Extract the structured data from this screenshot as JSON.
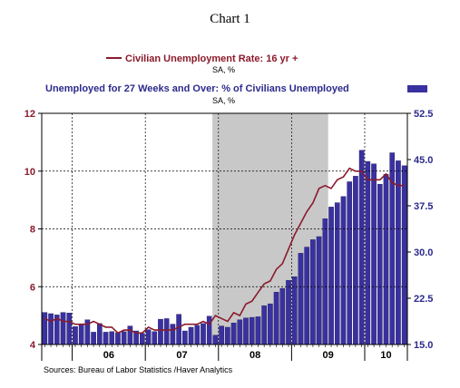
{
  "chart_data": {
    "type": "bar+line",
    "title": "Chart 1",
    "source": "Sources:  Bureau of Labor Statistics /Haver Analytics",
    "colors": {
      "line": "#8b1a2b",
      "bars": "#3a31a0",
      "recession": "#c8c8c8",
      "left_axis": "#8b1a2b",
      "right_axis": "#2b2a8c"
    },
    "x_tick_labels": [
      "06",
      "07",
      "08",
      "09",
      "10"
    ],
    "left_axis": {
      "ticks": [
        "4",
        "6",
        "8",
        "10",
        "12"
      ],
      "ylim": [
        4,
        12
      ]
    },
    "right_axis": {
      "ticks": [
        "15.0",
        "22.5",
        "30.0",
        "37.5",
        "45.0",
        "52.5"
      ],
      "ylim": [
        15,
        52.5
      ]
    },
    "recession": {
      "start": "2007-12",
      "end": "2009-06"
    },
    "months": [
      "2005-08",
      "2005-09",
      "2005-10",
      "2005-11",
      "2005-12",
      "2006-01",
      "2006-02",
      "2006-03",
      "2006-04",
      "2006-05",
      "2006-06",
      "2006-07",
      "2006-08",
      "2006-09",
      "2006-10",
      "2006-11",
      "2006-12",
      "2007-01",
      "2007-02",
      "2007-03",
      "2007-04",
      "2007-05",
      "2007-06",
      "2007-07",
      "2007-08",
      "2007-09",
      "2007-10",
      "2007-11",
      "2007-12",
      "2008-01",
      "2008-02",
      "2008-03",
      "2008-04",
      "2008-05",
      "2008-06",
      "2008-07",
      "2008-08",
      "2008-09",
      "2008-10",
      "2008-11",
      "2008-12",
      "2009-01",
      "2009-02",
      "2009-03",
      "2009-04",
      "2009-05",
      "2009-06",
      "2009-07",
      "2009-08",
      "2009-09",
      "2009-10",
      "2009-11",
      "2009-12",
      "2010-01",
      "2010-02",
      "2010-03",
      "2010-04",
      "2010-05",
      "2010-06",
      "2010-07"
    ],
    "series": [
      {
        "name": "Civilian Unemployment Rate: 16 yr +",
        "units": "SA, %",
        "axis": "left",
        "type": "line",
        "values": [
          4.9,
          4.8,
          4.9,
          4.8,
          4.8,
          4.7,
          4.7,
          4.7,
          4.8,
          4.7,
          4.6,
          4.6,
          4.4,
          4.5,
          4.5,
          4.4,
          4.4,
          4.6,
          4.5,
          4.5,
          4.5,
          4.5,
          4.6,
          4.7,
          4.7,
          4.7,
          4.8,
          4.7,
          5.0,
          4.9,
          4.8,
          5.1,
          5.0,
          5.4,
          5.5,
          5.8,
          6.1,
          6.2,
          6.6,
          6.8,
          7.3,
          7.8,
          8.2,
          8.6,
          8.9,
          9.4,
          9.5,
          9.4,
          9.7,
          9.8,
          10.1,
          10.0,
          10.0,
          9.7,
          9.7,
          9.7,
          9.9,
          9.6,
          9.5,
          9.5
        ]
      },
      {
        "name": "Unemployed for 27 Weeks and Over: % of Civilians Unemployed",
        "units": "SA, %",
        "axis": "right",
        "type": "bar",
        "values": [
          20.2,
          20.0,
          19.8,
          20.2,
          20.1,
          17.9,
          18.3,
          19.0,
          17.0,
          18.4,
          17.0,
          17.1,
          16.9,
          17.1,
          18.0,
          17.2,
          16.8,
          17.4,
          17.1,
          19.1,
          19.2,
          18.3,
          19.9,
          17.2,
          17.8,
          18.1,
          18.4,
          19.6,
          16.5,
          18.0,
          17.8,
          18.5,
          19.0,
          19.3,
          19.4,
          19.5,
          21.3,
          21.6,
          23.5,
          24.1,
          25.4,
          26.0,
          29.8,
          30.8,
          32.0,
          32.5,
          35.4,
          37.3,
          38.0,
          39.0,
          41.4,
          42.3,
          46.5,
          44.7,
          44.3,
          41.0,
          42.6,
          46.1,
          44.8,
          44.0
        ]
      }
    ],
    "grid": true
  }
}
